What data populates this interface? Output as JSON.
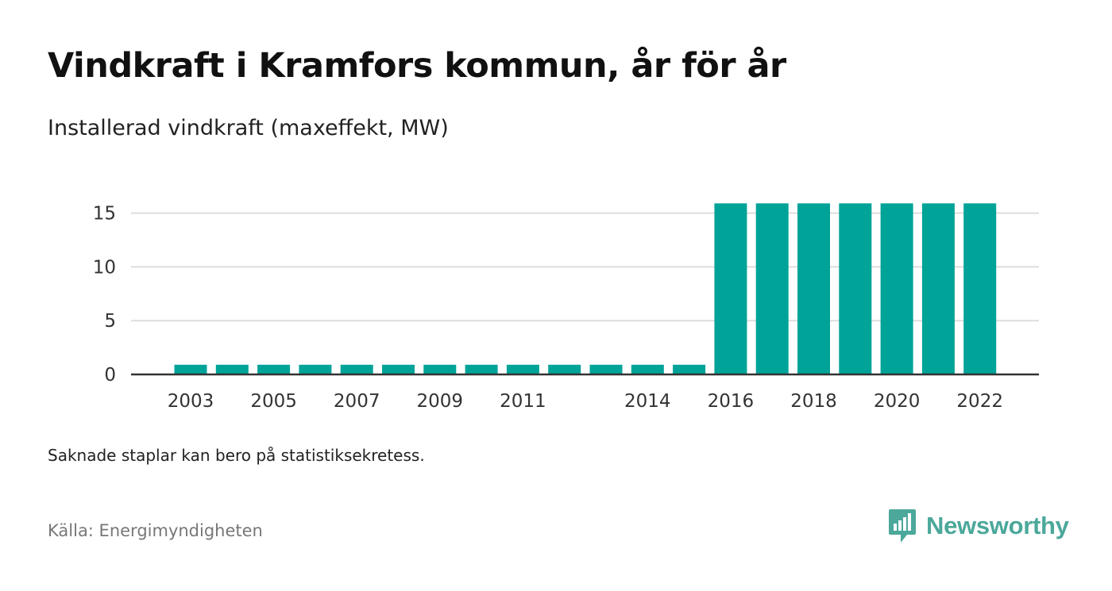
{
  "title": "Vindkraft i Kramfors kommun, år för år",
  "subtitle": "Installerad vindkraft (maxeffekt, MW)",
  "note": "Saknade staplar kan bero på statistiksekretess.",
  "source": "Källa: Energimyndigheten",
  "brand": {
    "name": "Newsworthy",
    "color": "#4ba89a",
    "logo_icon": "newsworthy-logo-icon"
  },
  "colors": {
    "bar": "#00a398",
    "grid": "#dddddd",
    "axis": "#333333"
  },
  "chart_data": {
    "type": "bar",
    "categories": [
      "2003",
      "2004",
      "2005",
      "2006",
      "2007",
      "2008",
      "2009",
      "2010",
      "2011",
      "2012",
      "2013",
      "2014",
      "2015",
      "2016",
      "2017",
      "2018",
      "2019",
      "2020",
      "2021",
      "2022"
    ],
    "values": [
      0.9,
      0.9,
      0.9,
      0.9,
      0.9,
      0.9,
      0.9,
      0.9,
      0.9,
      0.9,
      0.9,
      0.9,
      0.9,
      15.9,
      15.9,
      15.9,
      15.9,
      15.9,
      15.9,
      15.9
    ],
    "x_tick_labels": [
      "2003",
      "2005",
      "2007",
      "2009",
      "2011",
      "2014",
      "2016",
      "2018",
      "2020",
      "2022"
    ],
    "y_ticks": [
      0,
      5,
      10,
      15
    ],
    "ylim": [
      0,
      16
    ],
    "grid": true,
    "legend": "none"
  }
}
